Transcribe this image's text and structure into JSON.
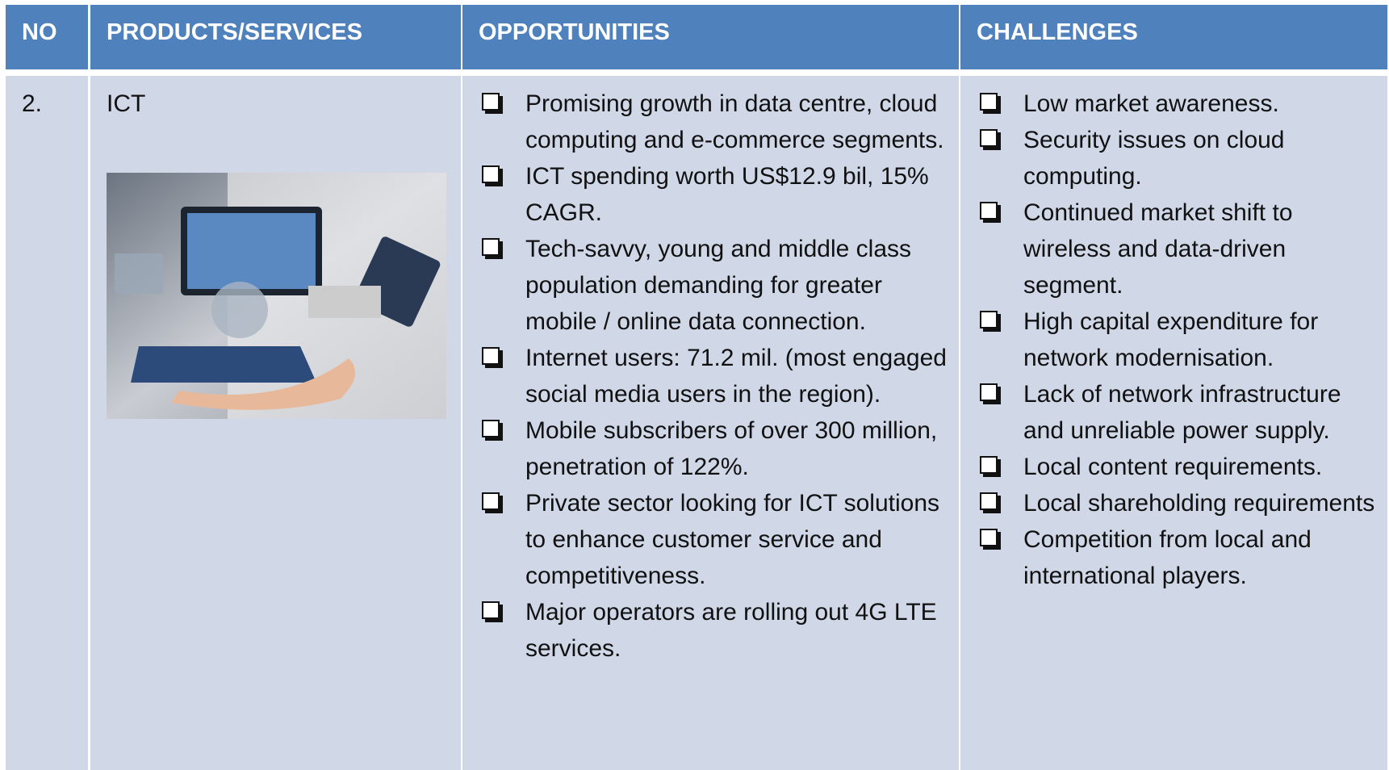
{
  "table": {
    "header": [
      "NO",
      "PRODUCTS/SERVICES",
      "OPPORTUNITIES",
      "CHALLENGES"
    ],
    "rows": [
      {
        "no": "2.",
        "product": "ICT",
        "opportunities": [
          "Promising growth in data centre, cloud computing and e-commerce segments.",
          "ICT spending worth US$12.9 bil, 15% CAGR.",
          "Tech-savvy, young and middle class population demanding for greater mobile / online data connection.",
          "Internet users: 71.2 mil. (most engaged social media users in the region).",
          "Mobile subscribers of over 300 million, penetration of 122%.",
          "Private sector looking for ICT solutions to enhance customer service and competitiveness.",
          "Major operators are rolling out 4G LTE services."
        ],
        "challenges": [
          "Low market awareness.",
          "Security issues on cloud computing.",
          "Continued market shift to wireless and data-driven segment.",
          "High capital expenditure for network modernisation.",
          "Lack of network infrastructure and unreliable power supply.",
          "Local content requirements.",
          "Local shareholding requirements",
          "Competition from local and international players."
        ]
      }
    ]
  }
}
